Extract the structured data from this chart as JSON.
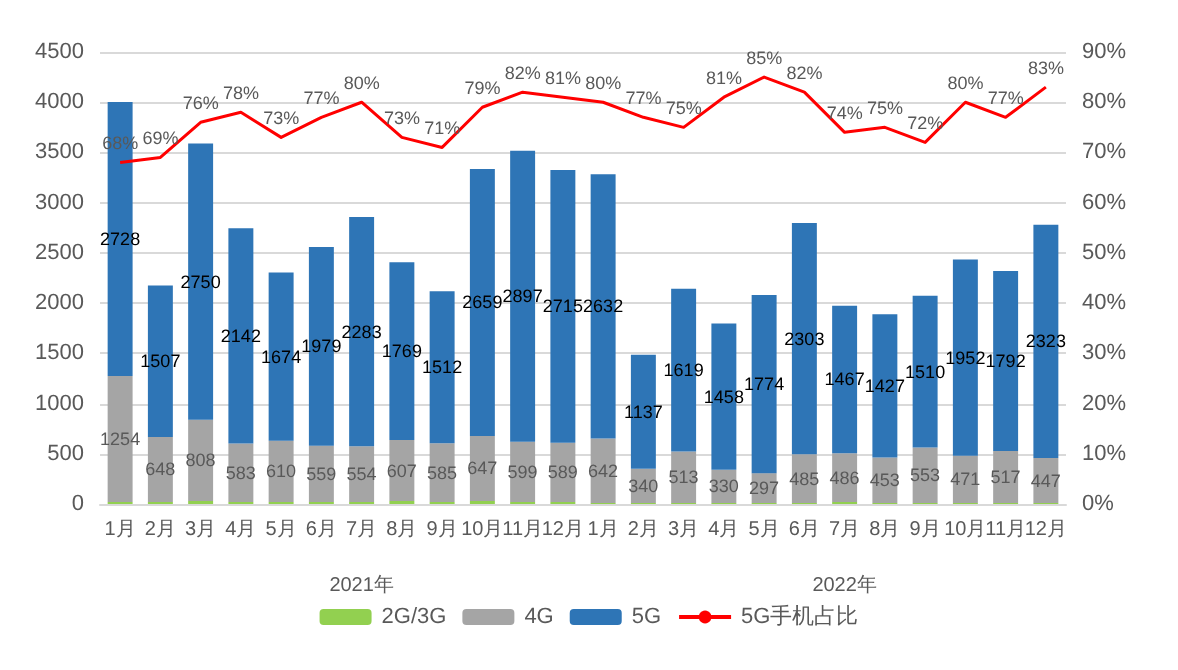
{
  "chart_data": {
    "type": "bar",
    "stacked": true,
    "categories": [
      "1月",
      "2月",
      "3月",
      "4月",
      "5月",
      "6月",
      "7月",
      "8月",
      "9月",
      "10月",
      "11月",
      "12月",
      "1月",
      "2月",
      "3月",
      "4月",
      "5月",
      "6月",
      "7月",
      "8月",
      "9月",
      "10月",
      "11月",
      "12月"
    ],
    "series": [
      {
        "name": "2G/3G",
        "color": "#92d050",
        "values": [
          20,
          20,
          30,
          20,
          20,
          20,
          20,
          30,
          20,
          30,
          20,
          20,
          10,
          10,
          10,
          10,
          10,
          10,
          20,
          10,
          10,
          10,
          10,
          10
        ]
      },
      {
        "name": "4G",
        "color": "#a5a5a5",
        "values": [
          1254,
          648,
          808,
          583,
          610,
          559,
          554,
          607,
          585,
          647,
          599,
          589,
          642,
          340,
          513,
          330,
          297,
          485,
          486,
          453,
          553,
          471,
          517,
          447
        ],
        "value_labels": [
          "1254",
          "648",
          "808",
          "583",
          "610",
          "559",
          "554",
          "607",
          "585",
          "647",
          "599",
          "589",
          "642",
          "340",
          "513",
          "330",
          "297",
          "485",
          "486",
          "453",
          "553",
          "471",
          "517",
          "447"
        ]
      },
      {
        "name": "5G",
        "color": "#2e75b6",
        "values": [
          2728,
          1507,
          2750,
          2142,
          1674,
          1979,
          2283,
          1769,
          1512,
          2659,
          2897,
          2715,
          2632,
          1137,
          1619,
          1458,
          1774,
          2303,
          1467,
          1427,
          1510,
          1952,
          1792,
          2323
        ],
        "value_labels": [
          "2728",
          "1507",
          "2750",
          "2142",
          "1674",
          "1979",
          "2283",
          "1769",
          "1512",
          "2659",
          "2897",
          "2715",
          "2632",
          "1137",
          "1619",
          "1458",
          "1774",
          "2303",
          "1467",
          "1427",
          "1510",
          "1952",
          "1792",
          "2323"
        ]
      },
      {
        "name": "5G手机占比",
        "type": "line",
        "axis": "y2",
        "color": "#ff0000",
        "values": [
          68,
          69,
          76,
          78,
          73,
          77,
          80,
          73,
          71,
          79,
          82,
          81,
          80,
          77,
          75,
          81,
          85,
          82,
          74,
          75,
          72,
          80,
          77,
          83
        ],
        "value_labels": [
          "68%",
          "69%",
          "76%",
          "78%",
          "73%",
          "77%",
          "80%",
          "73%",
          "71%",
          "79%",
          "82%",
          "81%",
          "80%",
          "77%",
          "75%",
          "81%",
          "85%",
          "82%",
          "74%",
          "75%",
          "72%",
          "80%",
          "77%",
          "83%"
        ]
      }
    ],
    "ylim": [
      0,
      4500
    ],
    "yticks": [
      0,
      500,
      1000,
      1500,
      2000,
      2500,
      3000,
      3500,
      4000,
      4500
    ],
    "y2lim": [
      0,
      90
    ],
    "y2ticks": [
      {
        "value": 0,
        "label": "0%"
      },
      {
        "value": 10,
        "label": "10%"
      },
      {
        "value": 20,
        "label": "20%"
      },
      {
        "value": 30,
        "label": "30%"
      },
      {
        "value": 40,
        "label": "40%"
      },
      {
        "value": 50,
        "label": "50%"
      },
      {
        "value": 60,
        "label": "60%"
      },
      {
        "value": 70,
        "label": "70%"
      },
      {
        "value": 80,
        "label": "80%"
      },
      {
        "value": 90,
        "label": "90%"
      }
    ],
    "annotations": [
      "2021年",
      "2022年"
    ],
    "grid": "y",
    "legend": "bottom",
    "marker": "none",
    "line_style": "solid"
  }
}
